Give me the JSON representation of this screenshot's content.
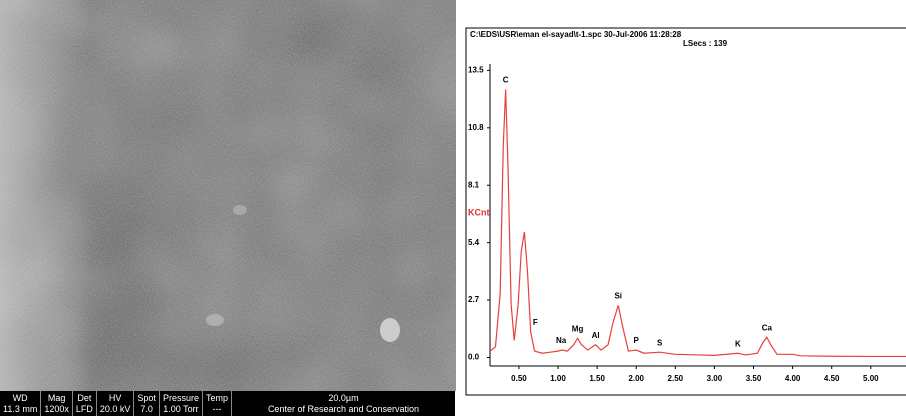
{
  "sem_bar": {
    "headers": [
      "WD",
      "Mag",
      "Det",
      "HV",
      "Spot",
      "Pressure",
      "Temp",
      "20.0µm"
    ],
    "values": [
      "11.3 mm",
      "1200x",
      "LFD",
      "20.0 kV",
      "7.0",
      "1.00 Torr",
      "---",
      "Center of Research and Conservation"
    ]
  },
  "chart_data": {
    "type": "line",
    "title": "C:\\EDS\\USR\\eman el-sayad\\t-1.spc  30-Jul-2006 11:28:28",
    "subtitle": "LSecs :  139",
    "y_label": "KCnt",
    "color": "#e8403c",
    "x": [
      0.13,
      0.2,
      0.26,
      0.3,
      0.33,
      0.36,
      0.4,
      0.44,
      0.49,
      0.53,
      0.57,
      0.61,
      0.65,
      0.7,
      0.8,
      0.9,
      1.0,
      1.05,
      1.12,
      1.2,
      1.25,
      1.3,
      1.38,
      1.48,
      1.55,
      1.64,
      1.7,
      1.77,
      1.83,
      1.9,
      2.0,
      2.1,
      2.3,
      2.5,
      2.8,
      3.0,
      3.3,
      3.4,
      3.55,
      3.62,
      3.67,
      3.72,
      3.8,
      4.0,
      4.1,
      4.5,
      5.0,
      5.45
    ],
    "values": [
      0.3,
      0.5,
      3,
      10,
      12.6,
      9,
      2.5,
      0.8,
      2.5,
      5,
      5.9,
      4,
      1.2,
      0.3,
      0.2,
      0.25,
      0.3,
      0.35,
      0.3,
      0.6,
      0.9,
      0.6,
      0.35,
      0.6,
      0.35,
      0.6,
      1.6,
      2.45,
      1.4,
      0.3,
      0.35,
      0.2,
      0.25,
      0.15,
      0.12,
      0.1,
      0.2,
      0.12,
      0.2,
      0.7,
      0.95,
      0.6,
      0.15,
      0.15,
      0.08,
      0.06,
      0.05,
      0.05
    ],
    "peaks": [
      {
        "label": "C",
        "energy": 0.33
      },
      {
        "label": "F",
        "energy": 0.71
      },
      {
        "label": "Na",
        "energy": 1.04
      },
      {
        "label": "Mg",
        "energy": 1.25
      },
      {
        "label": "Al",
        "energy": 1.48
      },
      {
        "label": "Si",
        "energy": 1.77
      },
      {
        "label": "P",
        "energy": 2.0
      },
      {
        "label": "S",
        "energy": 2.3
      },
      {
        "label": "K",
        "energy": 3.3
      },
      {
        "label": "Ca",
        "energy": 3.67
      }
    ],
    "xlim": [
      0.13,
      5.45
    ],
    "ylim": [
      -0.4,
      13.8
    ],
    "xticks": [
      {
        "value": 0.5,
        "label": "0.50"
      },
      {
        "value": 1,
        "label": "1.00"
      },
      {
        "value": 1.5,
        "label": "1.50"
      },
      {
        "value": 2,
        "label": "2.00"
      },
      {
        "value": 2.5,
        "label": "2.50"
      },
      {
        "value": 3,
        "label": "3.00"
      },
      {
        "value": 3.5,
        "label": "3.50"
      },
      {
        "value": 4,
        "label": "4.00"
      },
      {
        "value": 4.5,
        "label": "4.50"
      },
      {
        "value": 5,
        "label": "5.00"
      }
    ],
    "yticks": [
      {
        "value": 0,
        "label": "0.0"
      },
      2.7,
      5.4,
      8.1,
      10.8,
      13.5
    ]
  }
}
